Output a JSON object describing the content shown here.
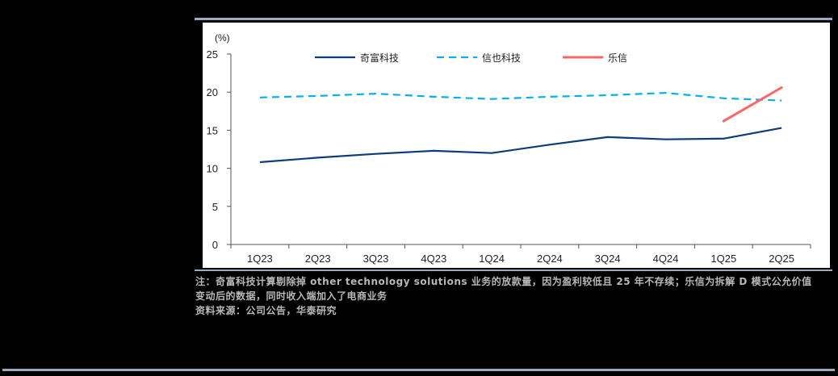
{
  "chart_data": {
    "type": "line",
    "title": "",
    "xlabel": "",
    "ylabel": "(%)",
    "ylim": [
      0,
      25
    ],
    "yticks": [
      0,
      5,
      10,
      15,
      20,
      25
    ],
    "grid": false,
    "legend_position": "top-inside",
    "categories": [
      "1Q23",
      "2Q23",
      "3Q23",
      "4Q23",
      "1Q24",
      "2Q24",
      "3Q24",
      "4Q24",
      "1Q25",
      "2Q25"
    ],
    "series": [
      {
        "name": "奇富科技",
        "color": "#0b3d7a",
        "style": "solid",
        "values": [
          10.8,
          11.4,
          11.9,
          12.3,
          12.0,
          13.1,
          14.1,
          13.8,
          13.9,
          15.3
        ]
      },
      {
        "name": "信也科技",
        "color": "#00b0f0",
        "style": "dashed",
        "values": [
          19.3,
          19.5,
          19.8,
          19.4,
          19.1,
          19.4,
          19.6,
          19.9,
          19.2,
          18.9
        ]
      },
      {
        "name": "乐信",
        "color": "#ff6565",
        "style": "solid",
        "values": [
          null,
          null,
          null,
          null,
          null,
          null,
          null,
          null,
          16.2,
          20.6
        ]
      }
    ]
  },
  "legend": {
    "items": [
      {
        "label": "奇富科技"
      },
      {
        "label": "信也科技"
      },
      {
        "label": "乐信"
      }
    ]
  },
  "axis": {
    "unit": "(%)"
  },
  "notes": {
    "line1": "注：奇富科技计算剔除掉 other technology solutions 业务的放款量，因为盈利较低且 25 年不存续；乐信为拆解 D 模式公允价值",
    "line2": "变动后的数据，同时收入端加入了电商业务",
    "source": "资料来源：公司公告，华泰研究"
  }
}
